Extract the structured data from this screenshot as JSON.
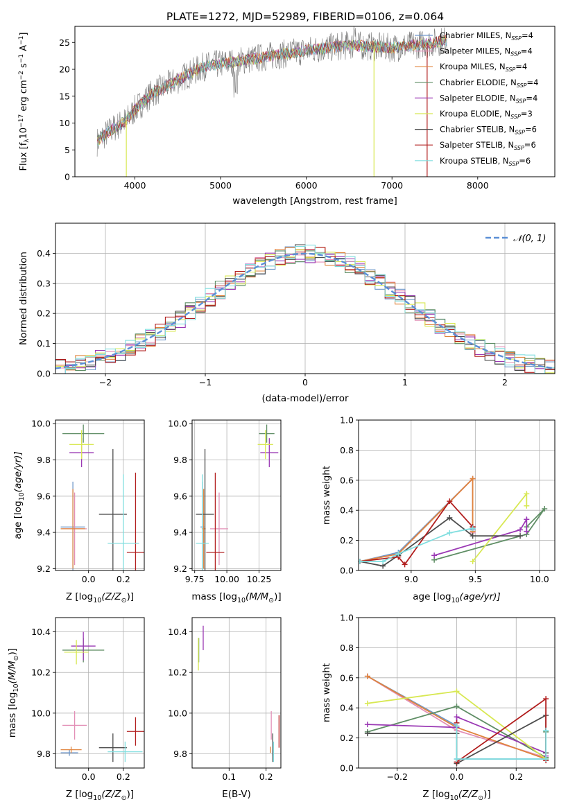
{
  "figure": {
    "title": "PLATE=1272, MJD=52989, FIBERID=0106, z=0.064"
  },
  "model_colors": {
    "Chabrier MILES": "#6f98c9",
    "Salpeter MILES": "#e28fb6",
    "Kroupa MILES": "#e0843d",
    "Chabrier ELODIE": "#5f8e65",
    "Salpeter ELODIE": "#9a38b4",
    "Kroupa ELODIE": "#d8e853",
    "Chabrier STELIB": "#4d4d4d",
    "Salpeter STELIB": "#b21f1f",
    "Kroupa STELIB": "#80dedf",
    "observed_spectrum": "#7a7a7a",
    "normal_curve": "#5b8fd6"
  },
  "chart_data": [
    {
      "id": "spectrum",
      "type": "line",
      "xlabel_text": "wavelength [Angstrom, rest frame]",
      "ylabel_text": "Flux [f",
      "ylabel_parts": {
        "lambda": "λ",
        "times": "10",
        "exp1": "−17",
        "unit": " erg cm",
        "exp2": "−2",
        "s": " s",
        "exp3": "−1",
        "A": " A",
        "exp4": "−1",
        "close": "]"
      },
      "xlim": [
        3300,
        8900
      ],
      "ylim": [
        0,
        28
      ],
      "xticks": [
        4000,
        5000,
        6000,
        7000,
        8000
      ],
      "yticks": [
        0,
        5,
        10,
        15,
        20,
        25
      ],
      "legend_position": "top-right",
      "legend": [
        {
          "model": "Chabrier MILES",
          "nssp": "4"
        },
        {
          "model": "Salpeter MILES",
          "nssp": "4"
        },
        {
          "model": "Kroupa MILES",
          "nssp": "4"
        },
        {
          "model": "Chabrier ELODIE",
          "nssp": "4"
        },
        {
          "model": "Salpeter ELODIE",
          "nssp": "4"
        },
        {
          "model": "Kroupa ELODIE",
          "nssp": "3"
        },
        {
          "model": "Chabrier STELIB",
          "nssp": "6"
        },
        {
          "model": "Salpeter STELIB",
          "nssp": "6"
        },
        {
          "model": "Kroupa STELIB",
          "nssp": "6"
        }
      ],
      "legend_label_suffix": ", N",
      "legend_subscript": "SSP",
      "legend_eq": "=",
      "continuum_anchors": [
        [
          3560,
          6.5
        ],
        [
          3700,
          8.5
        ],
        [
          3900,
          10.5
        ],
        [
          4000,
          12.5
        ],
        [
          4200,
          15.5
        ],
        [
          4500,
          18
        ],
        [
          4800,
          20.5
        ],
        [
          5200,
          21.5
        ],
        [
          5600,
          22.5
        ],
        [
          6000,
          23.5
        ],
        [
          6500,
          24.5
        ],
        [
          7000,
          24
        ],
        [
          7500,
          25
        ],
        [
          7650,
          25.5
        ]
      ],
      "spike_features": [
        {
          "x": 3900,
          "note": "dropout"
        },
        {
          "x": 6790,
          "note": "dropout"
        },
        {
          "x": 7410,
          "note": "dropout"
        }
      ],
      "observed_extent": [
        3560,
        7650
      ]
    },
    {
      "id": "residuals",
      "type": "histogram",
      "xlabel_text": "(data-model)/error",
      "ylabel_text": "Normed distribution",
      "xlim": [
        -2.5,
        2.5
      ],
      "ylim": [
        0,
        0.5
      ],
      "xticks": [
        -2,
        -1,
        0,
        1,
        2
      ],
      "xtick_labels": [
        "−2",
        "−1",
        "0",
        "1",
        "2"
      ],
      "yticks": [
        0.0,
        0.1,
        0.2,
        0.3,
        0.4
      ],
      "ytick_labels": [
        "0.0",
        "0.1",
        "0.2",
        "0.3",
        "0.4"
      ],
      "legend_position": "top-right",
      "legend_label": "𝒩(0, 1)",
      "bin_width": 0.1,
      "normal_mean": 0,
      "normal_sigma": 1,
      "grid": true
    },
    {
      "id": "age_vs_Z",
      "type": "scatter",
      "xlabel_text": "Z [log",
      "xlabel_sub": "10",
      "xlabel_rest": "(Z/Z",
      "xlabel_end": ")]",
      "ylabel_text": "age  [log",
      "ylabel_sub": "10",
      "ylabel_rest": "(age/yr)]",
      "xlim": [
        -0.19,
        0.32
      ],
      "ylim": [
        9.19,
        10.02
      ],
      "xticks": [
        0.0,
        0.2
      ],
      "xtick_labels": [
        "0.0",
        "0.2"
      ],
      "yticks": [
        9.2,
        9.4,
        9.6,
        9.8,
        10.0
      ],
      "ytick_labels": [
        "9.2",
        "9.4",
        "9.6",
        "9.8",
        "10.0"
      ],
      "points": [
        {
          "model": "Chabrier MILES",
          "x": -0.09,
          "xerr": 0.07,
          "y": 9.43,
          "yerr": 0.25
        },
        {
          "model": "Salpeter MILES",
          "x": -0.08,
          "xerr": 0.07,
          "y": 9.42,
          "yerr": 0.2
        },
        {
          "model": "Kroupa MILES",
          "x": -0.09,
          "xerr": 0.07,
          "y": 9.42,
          "yerr": 0.22
        },
        {
          "model": "Chabrier ELODIE",
          "x": -0.03,
          "xerr": 0.12,
          "y": 9.945,
          "yerr": 0.05
        },
        {
          "model": "Salpeter ELODIE",
          "x": -0.04,
          "xerr": 0.07,
          "y": 9.84,
          "yerr": 0.08
        },
        {
          "model": "Kroupa ELODIE",
          "x": -0.04,
          "xerr": 0.07,
          "y": 9.885,
          "yerr": 0.08
        },
        {
          "model": "Chabrier STELIB",
          "x": 0.14,
          "xerr": 0.08,
          "y": 9.5,
          "yerr": 0.36
        },
        {
          "model": "Salpeter STELIB",
          "x": 0.27,
          "xerr": 0.05,
          "y": 9.29,
          "yerr": 0.44
        },
        {
          "model": "Kroupa STELIB",
          "x": 0.2,
          "xerr": 0.09,
          "y": 9.34,
          "yerr": 0.38
        }
      ]
    },
    {
      "id": "age_vs_mass",
      "type": "scatter",
      "xlabel_text": "mass [log",
      "xlabel_sub": "10",
      "xlabel_rest": "(M/M",
      "xlabel_end": ")]",
      "xlim": [
        9.73,
        10.42
      ],
      "ylim": [
        9.19,
        10.02
      ],
      "xticks": [
        9.75,
        10.0,
        10.25
      ],
      "xtick_labels": [
        "9.75",
        "10.00",
        "10.25"
      ],
      "yticks": [
        9.2,
        9.4,
        9.6,
        9.8,
        10.0
      ],
      "ytick_labels": [
        "9.2",
        "9.4",
        "9.6",
        "9.8",
        "10.0"
      ],
      "points": [
        {
          "model": "Chabrier MILES",
          "x": 9.81,
          "xerr": 0.015,
          "y": 9.43,
          "yerr": 0.25
        },
        {
          "model": "Salpeter MILES",
          "x": 9.94,
          "xerr": 0.07,
          "y": 9.42,
          "yerr": 0.2
        },
        {
          "model": "Kroupa MILES",
          "x": 9.82,
          "xerr": 0.015,
          "y": 9.42,
          "yerr": 0.22
        },
        {
          "model": "Chabrier ELODIE",
          "x": 10.31,
          "xerr": 0.06,
          "y": 9.945,
          "yerr": 0.05
        },
        {
          "model": "Salpeter ELODIE",
          "x": 10.33,
          "xerr": 0.07,
          "y": 9.84,
          "yerr": 0.08
        },
        {
          "model": "Kroupa ELODIE",
          "x": 10.3,
          "xerr": 0.06,
          "y": 9.885,
          "yerr": 0.08
        },
        {
          "model": "Chabrier STELIB",
          "x": 9.83,
          "xerr": 0.07,
          "y": 9.5,
          "yerr": 0.36
        },
        {
          "model": "Salpeter STELIB",
          "x": 9.91,
          "xerr": 0.07,
          "y": 9.29,
          "yerr": 0.44
        },
        {
          "model": "Kroupa STELIB",
          "x": 9.81,
          "xerr": 0.05,
          "y": 9.34,
          "yerr": 0.38
        }
      ]
    },
    {
      "id": "weight_vs_age",
      "type": "line",
      "xlabel_text": "age  [log",
      "xlabel_sub": "10",
      "xlabel_rest": "(age/yr)]",
      "ylabel_text": "mass weight",
      "xlim": [
        8.59,
        10.12
      ],
      "ylim": [
        0,
        1
      ],
      "xticks": [
        9.0,
        9.5,
        10.0
      ],
      "xtick_labels": [
        "9.0",
        "9.5",
        "10.0"
      ],
      "yticks": [
        0.0,
        0.2,
        0.4,
        0.6,
        0.8,
        1.0
      ],
      "ytick_labels": [
        "0.0",
        "0.2",
        "0.4",
        "0.6",
        "0.8",
        "1.0"
      ],
      "grid": true,
      "series": [
        {
          "model": "Chabrier MILES",
          "x": [
            8.6,
            8.9,
            9.48,
            9.48
          ],
          "y": [
            0.06,
            0.12,
            0.61,
            0.27
          ]
        },
        {
          "model": "Salpeter MILES",
          "x": [
            8.6,
            8.9,
            9.48,
            9.48
          ],
          "y": [
            0.06,
            0.11,
            0.61,
            0.25
          ]
        },
        {
          "model": "Kroupa MILES",
          "x": [
            8.6,
            8.9,
            9.48,
            9.48
          ],
          "y": [
            0.06,
            0.11,
            0.61,
            0.26
          ]
        },
        {
          "model": "Chabrier ELODIE",
          "x": [
            9.18,
            9.9,
            10.04,
            9.9
          ],
          "y": [
            0.07,
            0.24,
            0.41,
            0.29
          ]
        },
        {
          "model": "Salpeter ELODIE",
          "x": [
            9.18,
            9.85,
            9.9,
            9.9
          ],
          "y": [
            0.1,
            0.27,
            0.34,
            0.26
          ]
        },
        {
          "model": "Kroupa ELODIE",
          "x": [
            9.48,
            9.9,
            9.9
          ],
          "y": [
            0.06,
            0.51,
            0.43
          ]
        },
        {
          "model": "Chabrier STELIB",
          "x": [
            8.6,
            8.78,
            8.9,
            9.3,
            9.48,
            9.85
          ],
          "y": [
            0.06,
            0.03,
            0.1,
            0.35,
            0.23,
            0.23
          ]
        },
        {
          "model": "Salpeter STELIB",
          "x": [
            8.6,
            8.9,
            8.95,
            9.3,
            9.48,
            9.48
          ],
          "y": [
            0.06,
            0.09,
            0.04,
            0.46,
            0.29,
            0.29
          ]
        },
        {
          "model": "Kroupa STELIB",
          "x": [
            8.6,
            8.78,
            8.9,
            9.3,
            9.48
          ],
          "y": [
            0.06,
            0.06,
            0.11,
            0.25,
            0.28
          ]
        }
      ]
    },
    {
      "id": "mass_vs_Z",
      "type": "scatter",
      "xlabel_text": "Z [log",
      "xlabel_sub": "10",
      "xlabel_rest": "(Z/Z",
      "xlabel_end": ")]",
      "ylabel_text": "mass [log",
      "ylabel_sub": "10",
      "ylabel_rest": "(M/M",
      "ylabel_end": ")]",
      "xlim": [
        -0.19,
        0.32
      ],
      "ylim": [
        9.73,
        10.47
      ],
      "xticks": [
        0.0,
        0.2
      ],
      "xtick_labels": [
        "0.0",
        "0.2"
      ],
      "yticks": [
        9.8,
        10.0,
        10.2,
        10.4
      ],
      "ytick_labels": [
        "9.8",
        "10.0",
        "10.2",
        "10.4"
      ],
      "points": [
        {
          "model": "Chabrier MILES",
          "x": -0.11,
          "xerr": 0.05,
          "y": 9.805,
          "yerr": 0.015
        },
        {
          "model": "Salpeter MILES",
          "x": -0.08,
          "xerr": 0.07,
          "y": 9.94,
          "yerr": 0.07
        },
        {
          "model": "Kroupa MILES",
          "x": -0.1,
          "xerr": 0.06,
          "y": 9.82,
          "yerr": 0.015
        },
        {
          "model": "Chabrier ELODIE",
          "x": -0.03,
          "xerr": 0.12,
          "y": 10.31,
          "yerr": 0.06
        },
        {
          "model": "Salpeter ELODIE",
          "x": -0.03,
          "xerr": 0.07,
          "y": 10.33,
          "yerr": 0.07
        },
        {
          "model": "Kroupa ELODIE",
          "x": -0.07,
          "xerr": 0.07,
          "y": 10.3,
          "yerr": 0.06
        },
        {
          "model": "Chabrier STELIB",
          "x": 0.14,
          "xerr": 0.08,
          "y": 9.83,
          "yerr": 0.07
        },
        {
          "model": "Salpeter STELIB",
          "x": 0.27,
          "xerr": 0.05,
          "y": 9.91,
          "yerr": 0.07
        },
        {
          "model": "Kroupa STELIB",
          "x": 0.21,
          "xerr": 0.1,
          "y": 9.81,
          "yerr": 0.05
        }
      ]
    },
    {
      "id": "mass_vs_ebv",
      "type": "scatter",
      "xlabel_text": "E(B-V)",
      "xlim": [
        0.0,
        0.24
      ],
      "ylim": [
        9.73,
        10.47
      ],
      "xticks": [
        0.1,
        0.2
      ],
      "xtick_labels": [
        "0.1",
        "0.2"
      ],
      "yticks": [
        9.8,
        10.0,
        10.2,
        10.4
      ],
      "ytick_labels": [
        "9.8",
        "10.0",
        "10.2",
        "10.4"
      ],
      "points": [
        {
          "model": "Chabrier MILES",
          "x": 0.218,
          "y": 9.805,
          "yerr": 0.015
        },
        {
          "model": "Salpeter MILES",
          "x": 0.214,
          "y": 9.94,
          "yerr": 0.07
        },
        {
          "model": "Kroupa MILES",
          "x": 0.212,
          "y": 9.82,
          "yerr": 0.015
        },
        {
          "model": "Chabrier ELODIE",
          "x": 0.018,
          "y": 10.31,
          "yerr": 0.06
        },
        {
          "model": "Salpeter ELODIE",
          "x": 0.03,
          "y": 10.37,
          "yerr": 0.06
        },
        {
          "model": "Kroupa ELODIE",
          "x": 0.017,
          "y": 10.29,
          "yerr": 0.08
        },
        {
          "model": "Chabrier STELIB",
          "x": 0.218,
          "y": 9.83,
          "yerr": 0.07
        },
        {
          "model": "Salpeter STELIB",
          "x": 0.235,
          "y": 9.91,
          "yerr": 0.08
        },
        {
          "model": "Kroupa STELIB",
          "x": 0.22,
          "y": 9.81,
          "yerr": 0.05
        }
      ]
    },
    {
      "id": "weight_vs_Z",
      "type": "line",
      "xlabel_text": "Z [log",
      "xlabel_sub": "10",
      "xlabel_rest": "(Z/Z",
      "xlabel_end": ")]",
      "ylabel_text": "mass weight",
      "xlim": [
        -0.33,
        0.33
      ],
      "ylim": [
        0,
        1
      ],
      "xticks": [
        -0.2,
        0.0,
        0.2
      ],
      "xtick_labels": [
        "−0.2",
        "0.0",
        "0.2"
      ],
      "yticks": [
        0.0,
        0.2,
        0.4,
        0.6,
        0.8,
        1.0
      ],
      "ytick_labels": [
        "0.0",
        "0.2",
        "0.4",
        "0.6",
        "0.8",
        "1.0"
      ],
      "grid": true,
      "series": [
        {
          "model": "Chabrier MILES",
          "x": [
            -0.3,
            0.0,
            0.0,
            0.3
          ],
          "y": [
            0.61,
            0.28,
            0.06,
            0.06
          ]
        },
        {
          "model": "Salpeter MILES",
          "x": [
            -0.3,
            0.0,
            0.3
          ],
          "y": [
            0.61,
            0.25,
            0.07
          ]
        },
        {
          "model": "Kroupa MILES",
          "x": [
            -0.3,
            0.0,
            0.3
          ],
          "y": [
            0.61,
            0.27,
            0.06
          ]
        },
        {
          "model": "Chabrier ELODIE",
          "x": [
            -0.3,
            0.0,
            0.3,
            0.3
          ],
          "y": [
            0.24,
            0.41,
            0.07,
            0.24
          ]
        },
        {
          "model": "Salpeter ELODIE",
          "x": [
            -0.3,
            0.0,
            0.0,
            0.3,
            0.3
          ],
          "y": [
            0.29,
            0.27,
            0.34,
            0.1,
            0.08
          ]
        },
        {
          "model": "Kroupa ELODIE",
          "x": [
            -0.3,
            0.0,
            0.3
          ],
          "y": [
            0.43,
            0.51,
            0.06
          ]
        },
        {
          "model": "Chabrier STELIB",
          "x": [
            -0.3,
            0.0,
            0.0,
            0.3,
            0.3
          ],
          "y": [
            0.23,
            0.23,
            0.03,
            0.35,
            0.1
          ]
        },
        {
          "model": "Salpeter STELIB",
          "x": [
            0.0,
            0.0,
            0.3,
            0.3
          ],
          "y": [
            0.3,
            0.04,
            0.46,
            0.05
          ]
        },
        {
          "model": "Kroupa STELIB",
          "x": [
            0.0,
            0.0,
            0.3,
            0.3
          ],
          "y": [
            0.28,
            0.06,
            0.06,
            0.25
          ]
        }
      ]
    }
  ]
}
